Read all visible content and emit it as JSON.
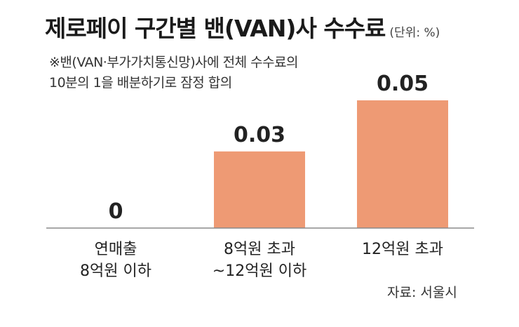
{
  "chart_data": {
    "type": "bar",
    "title": "제로페이 구간별 밴(VAN)사 수수료",
    "unit": "(단위: %)",
    "notes": [
      "※밴(VAN·부가가치통신망)사에 전체 수수료의",
      "10분의 1을 배분하기로 잠정 합의"
    ],
    "categories": [
      [
        "연매출",
        "8억원 이하"
      ],
      [
        "8억원 초과",
        "~12억원 이하"
      ],
      [
        "12억원 초과"
      ]
    ],
    "values": [
      0,
      0.03,
      0.05
    ],
    "value_labels": [
      "0",
      "0.03",
      "0.05"
    ],
    "ylim": [
      0,
      0.05
    ],
    "bar_color": "#ee9a74",
    "source": "자료: 서울시"
  }
}
